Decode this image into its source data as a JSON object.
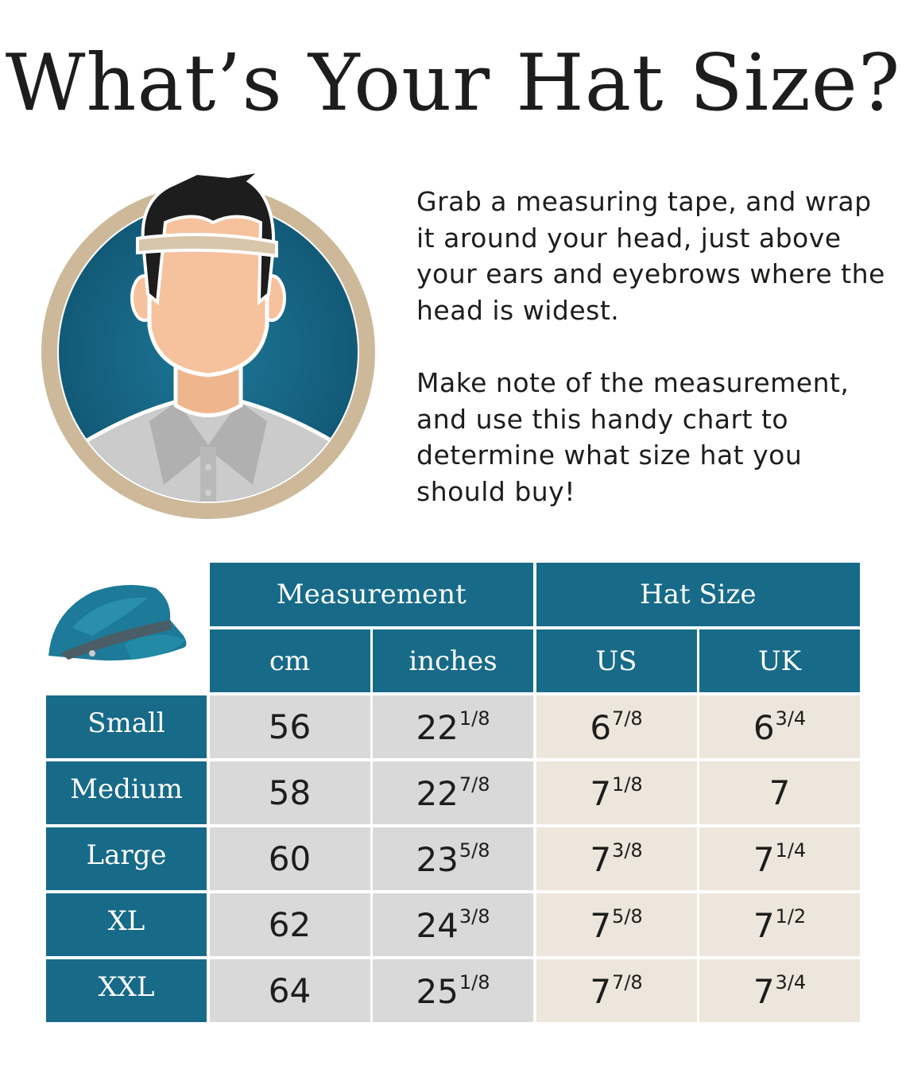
{
  "title": "What’s Your Hat Size?",
  "instructions": [
    "Grab a measuring tape, and wrap it around your head, just above your ears and eyebrows where the head is widest.",
    "Make note of the measurement, and use this handy chart to determine what size hat you should buy!"
  ],
  "colors": {
    "header": "#176a88",
    "measurement_cells": "#d9d9d9",
    "hat_size_cells": "#ece6dc",
    "ring": "#cdb99a"
  },
  "illustration": {
    "person": "man-measuring-head-icon",
    "hat": "newsboy-cap-icon"
  },
  "table": {
    "groups": [
      "Measurement",
      "Hat Size"
    ],
    "columns": [
      "cm",
      "inches",
      "US",
      "UK"
    ],
    "rows": [
      {
        "size": "Small",
        "cm": "56",
        "in_whole": "22",
        "in_frac": "1/8",
        "us_whole": "6",
        "us_frac": "7/8",
        "uk_whole": "6",
        "uk_frac": "3/4"
      },
      {
        "size": "Medium",
        "cm": "58",
        "in_whole": "22",
        "in_frac": "7/8",
        "us_whole": "7",
        "us_frac": "1/8",
        "uk_whole": "7",
        "uk_frac": ""
      },
      {
        "size": "Large",
        "cm": "60",
        "in_whole": "23",
        "in_frac": "5/8",
        "us_whole": "7",
        "us_frac": "3/8",
        "uk_whole": "7",
        "uk_frac": "1/4"
      },
      {
        "size": "XL",
        "cm": "62",
        "in_whole": "24",
        "in_frac": "3/8",
        "us_whole": "7",
        "us_frac": "5/8",
        "uk_whole": "7",
        "uk_frac": "1/2"
      },
      {
        "size": "XXL",
        "cm": "64",
        "in_whole": "25",
        "in_frac": "1/8",
        "us_whole": "7",
        "us_frac": "7/8",
        "uk_whole": "7",
        "uk_frac": "3/4"
      }
    ]
  }
}
